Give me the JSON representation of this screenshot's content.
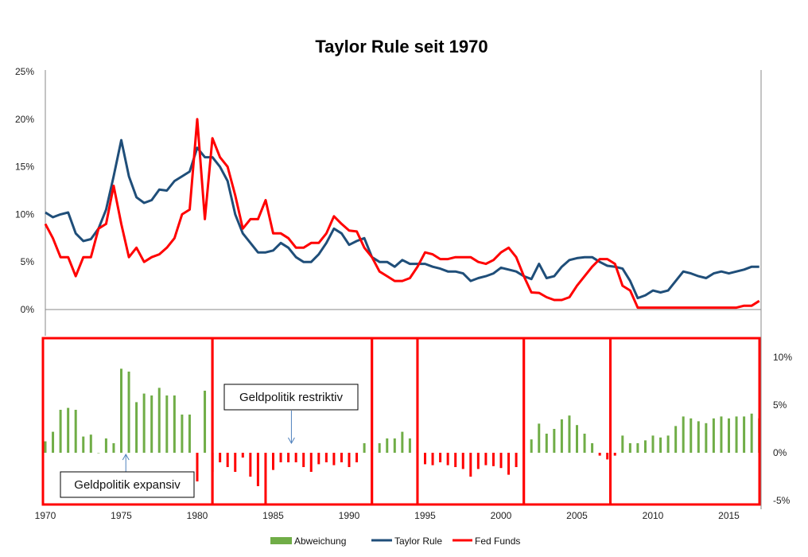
{
  "chart_data": {
    "type": "line",
    "title": "Taylor Rule seit 1970",
    "x": [
      1970,
      1970.5,
      1971,
      1971.5,
      1972,
      1972.5,
      1973,
      1973.5,
      1974,
      1974.5,
      1975,
      1975.5,
      1976,
      1976.5,
      1977,
      1977.5,
      1978,
      1978.5,
      1979,
      1979.5,
      1980,
      1980.5,
      1981,
      1981.5,
      1982,
      1982.5,
      1983,
      1983.5,
      1984,
      1984.5,
      1985,
      1985.5,
      1986,
      1986.5,
      1987,
      1987.5,
      1988,
      1988.5,
      1989,
      1989.5,
      1990,
      1990.5,
      1991,
      1991.5,
      1992,
      1992.5,
      1993,
      1993.5,
      1994,
      1994.5,
      1995,
      1995.5,
      1996,
      1996.5,
      1997,
      1997.5,
      1998,
      1998.5,
      1999,
      1999.5,
      2000,
      2000.5,
      2001,
      2001.5,
      2002,
      2002.5,
      2003,
      2003.5,
      2004,
      2004.5,
      2005,
      2005.5,
      2006,
      2006.5,
      2007,
      2007.5,
      2008,
      2008.5,
      2009,
      2009.5,
      2010,
      2010.5,
      2011,
      2011.5,
      2012,
      2012.5,
      2013,
      2013.5,
      2014,
      2014.5,
      2015,
      2015.5,
      2016,
      2016.5,
      2017
    ],
    "series": [
      {
        "name": "Taylor Rule",
        "color": "#1f4e79",
        "axis": "left",
        "values": [
          10.2,
          9.7,
          10.0,
          10.2,
          8.0,
          7.2,
          7.4,
          8.5,
          10.5,
          14,
          17.8,
          14,
          11.8,
          11.2,
          11.5,
          12.6,
          12.5,
          13.5,
          14,
          14.5,
          17,
          16,
          16,
          15,
          13.5,
          10,
          8,
          7,
          6,
          6,
          6.2,
          7,
          6.5,
          5.5,
          5,
          5,
          5.8,
          7,
          8.5,
          8,
          6.8,
          7.2,
          7.5,
          5.5,
          5,
          5,
          4.5,
          5.2,
          4.8,
          4.8,
          4.8,
          4.5,
          4.3,
          4.0,
          4.0,
          3.8,
          3.0,
          3.3,
          3.5,
          3.8,
          4.4,
          4.2,
          4.0,
          3.5,
          3.2,
          4.8,
          3.3,
          3.5,
          4.5,
          5.2,
          5.4,
          5.5,
          5.5,
          5.0,
          4.6,
          4.5,
          4.3,
          3,
          1.2,
          1.5,
          2,
          1.8,
          2,
          3,
          4,
          3.8,
          3.5,
          3.3,
          3.8,
          4,
          3.8,
          4.0,
          4.2,
          4.5,
          4.5
        ]
      },
      {
        "name": "Fed Funds",
        "color": "#ff0000",
        "axis": "left",
        "values": [
          9,
          7.5,
          5.5,
          5.5,
          3.5,
          5.5,
          5.5,
          8.5,
          9,
          13,
          9,
          5.5,
          6.5,
          5,
          5.5,
          5.8,
          6.5,
          7.5,
          10,
          10.5,
          20,
          9.5,
          18,
          16,
          15,
          12,
          8.5,
          9.5,
          9.5,
          11.5,
          8,
          8,
          7.5,
          6.5,
          6.5,
          7,
          7,
          8,
          9.8,
          9,
          8.3,
          8.2,
          6.5,
          5.5,
          4,
          3.5,
          3,
          3,
          3.3,
          4.5,
          6,
          5.8,
          5.3,
          5.3,
          5.5,
          5.5,
          5.5,
          5,
          4.8,
          5.2,
          6,
          6.5,
          5.5,
          3.5,
          1.8,
          1.75,
          1.3,
          1,
          1,
          1.3,
          2.5,
          3.5,
          4.5,
          5.3,
          5.3,
          4.8,
          2.5,
          2,
          0.2,
          0.2,
          0.2,
          0.2,
          0.2,
          0.2,
          0.2,
          0.2,
          0.2,
          0.2,
          0.2,
          0.2,
          0.2,
          0.2,
          0.4,
          0.4,
          0.9
        ]
      },
      {
        "name": "Abweichung",
        "type": "bar",
        "color": "#70ad47",
        "negative_color": "#ff0000",
        "axis": "right",
        "values": [
          1.2,
          2.2,
          4.5,
          4.7,
          4.5,
          1.7,
          1.9,
          0,
          1.5,
          1,
          8.8,
          8.5,
          5.3,
          6.2,
          6,
          6.8,
          6,
          6,
          4,
          4,
          -3,
          6.5,
          -2,
          -1,
          -1.5,
          -2,
          -0.5,
          -2.5,
          -3.5,
          -5.5,
          -1.8,
          -1,
          -1,
          -1,
          -1.5,
          -2,
          -1.2,
          -1,
          -1.3,
          -1,
          -1.5,
          -1,
          1,
          0,
          1,
          1.5,
          1.5,
          2.2,
          1.5,
          0.3,
          -1.2,
          -1.3,
          -1,
          -1.3,
          -1.5,
          -1.7,
          -2.5,
          -1.7,
          -1.3,
          -1.4,
          -1.6,
          -2.3,
          -1.5,
          0,
          1.4,
          3.05,
          2,
          2.5,
          3.5,
          3.9,
          2.9,
          2,
          1,
          -0.3,
          -0.7,
          -0.3,
          1.8,
          1,
          1,
          1.3,
          1.8,
          1.6,
          1.8,
          2.8,
          3.8,
          3.6,
          3.3,
          3.1,
          3.6,
          3.8,
          3.6,
          3.8,
          3.8,
          4.1,
          3.6
        ]
      }
    ],
    "x_ticks": [
      "1970",
      "1975",
      "1980",
      "1985",
      "1990",
      "1995",
      "2000",
      "2005",
      "2010",
      "2015"
    ],
    "y_left_ticks": [
      "0%",
      "5%",
      "10%",
      "15%",
      "20%",
      "25%"
    ],
    "y_left_range": [
      0,
      25
    ],
    "y_right_ticks": [
      "-5%",
      "0%",
      "5%",
      "10%"
    ],
    "y_right_range": [
      -5,
      10
    ],
    "period_boundaries": [
      1970,
      1981,
      1991.5,
      1994.5,
      2001.5,
      2007.2,
      2017
    ],
    "annotations": [
      {
        "text": "Geldpolitik expansiv",
        "x": 1975.3
      },
      {
        "text": "Geldpolitik restriktiv",
        "x": 1986.2
      }
    ],
    "legend": [
      "Abweichung",
      "Taylor Rule",
      "Fed Funds"
    ],
    "legend_position": "bottom",
    "grid": false
  }
}
